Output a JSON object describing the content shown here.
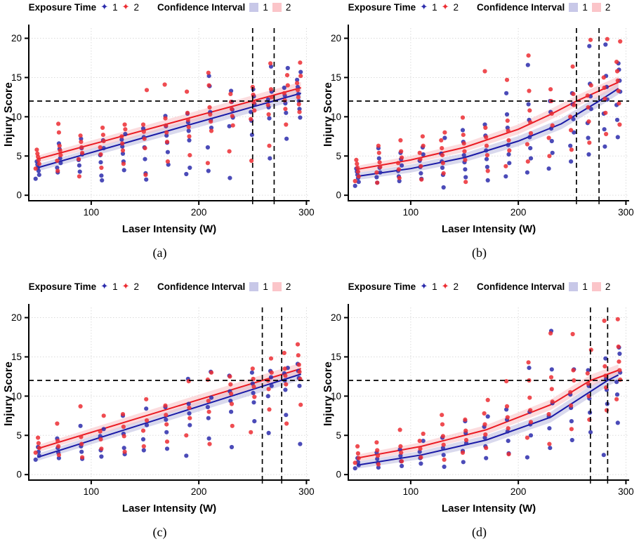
{
  "colors": {
    "blue_line": "#1A1AA6",
    "blue_point": "#2C2CAC",
    "red_line": "#EA1B23",
    "red_point": "#EC2D33",
    "band_blue": "#B9B9DF",
    "band_red": "#F9BFC3",
    "swatch_blue": "#C8C8E8",
    "swatch_red": "#FBC5C9",
    "grid": "#DBDBDB",
    "axis": "#000000",
    "threshold": "#000000"
  },
  "legend": {
    "exposure_label": "Exposure Time",
    "level1": "1",
    "level2": "2",
    "ci_label": "Confidence Interval",
    "ci1": "1",
    "ci2": "2",
    "marker_glyph": "✦"
  },
  "axes": {
    "xlabel": "Laser Intensity (W)",
    "ylabel": "Injury Score",
    "x_ticks": [
      100,
      200,
      300
    ],
    "y_ticks": [
      0,
      5,
      10,
      15,
      20
    ],
    "xlim": [
      42,
      303
    ],
    "ylim": [
      -0.7,
      21.3
    ],
    "threshold_y": 12
  },
  "chart_data": [
    {
      "panel": "a",
      "caption": "(a)",
      "type": "scatter",
      "trend": "linear",
      "hline": 12,
      "vlines": [
        250,
        270
      ],
      "line_blue": [
        [
          50,
          3.5
        ],
        [
          295,
          13.0
        ]
      ],
      "line_red": [
        [
          50,
          4.6
        ],
        [
          295,
          13.7
        ]
      ],
      "points_blue": [
        [
          50,
          2.1,
          2.6,
          3.1,
          3.5,
          3.9,
          4.3
        ],
        [
          70,
          2.9,
          3.5,
          4.1,
          4.7,
          5.9,
          6.6
        ],
        [
          90,
          3.0,
          3.8,
          4.5,
          5.2,
          6.0,
          7.2
        ],
        [
          110,
          1.9,
          2.5,
          4.2,
          5.1,
          6.0,
          7.0
        ],
        [
          130,
          3.2,
          4.3,
          5.3,
          6.2,
          7.1,
          7.8
        ],
        [
          150,
          2.0,
          2.8,
          4.6,
          6.1,
          7.4,
          8.5
        ],
        [
          170,
          3.9,
          5.5,
          6.7,
          7.6,
          8.8,
          10.1
        ],
        [
          190,
          2.7,
          3.5,
          7.0,
          8.2,
          9.3,
          10.4
        ],
        [
          210,
          3.1,
          6.1,
          8.6,
          9.6,
          10.6,
          13.9,
          15.2
        ],
        [
          230,
          2.2,
          8.8,
          9.9,
          10.9,
          11.9,
          13.3
        ],
        [
          250,
          7.7,
          9.5,
          10.6,
          11.6,
          12.6,
          13.5
        ],
        [
          266,
          4.7,
          9.8,
          11.2,
          12.2,
          13.2,
          16.4
        ],
        [
          281,
          7.2,
          10.5,
          11.7,
          12.7,
          13.7,
          16.2
        ],
        [
          293,
          9.9,
          11.0,
          12.0,
          12.9,
          13.8,
          14.7,
          15.7
        ]
      ],
      "points_red": [
        [
          50,
          3.4,
          4.0,
          4.5,
          4.9,
          5.3,
          5.8
        ],
        [
          70,
          3.1,
          4.4,
          5.1,
          5.7,
          6.3,
          8.0,
          9.1
        ],
        [
          90,
          2.4,
          4.6,
          5.4,
          6.1,
          6.8,
          7.6
        ],
        [
          110,
          3.5,
          5.2,
          6.1,
          6.9,
          7.7,
          8.6
        ],
        [
          130,
          4.0,
          5.7,
          6.6,
          7.5,
          8.4,
          9.0
        ],
        [
          150,
          2.6,
          6.0,
          7.2,
          8.1,
          9.0,
          13.4
        ],
        [
          170,
          4.3,
          6.8,
          8.0,
          8.9,
          9.8,
          14.1
        ],
        [
          190,
          5.1,
          7.5,
          8.7,
          9.6,
          10.5,
          13.2
        ],
        [
          210,
          4.1,
          8.2,
          9.4,
          10.3,
          11.2,
          14.0,
          15.6
        ],
        [
          230,
          5.6,
          8.9,
          10.1,
          11.0,
          11.9,
          12.9
        ],
        [
          250,
          4.4,
          9.7,
          10.8,
          11.8,
          12.8,
          13.8
        ],
        [
          266,
          6.3,
          10.3,
          11.5,
          12.5,
          13.5,
          16.8
        ],
        [
          281,
          9.0,
          11.0,
          12.1,
          13.0,
          14.0,
          15.3
        ],
        [
          293,
          10.6,
          11.6,
          12.5,
          13.4,
          14.3,
          15.2,
          16.9
        ]
      ]
    },
    {
      "panel": "b",
      "caption": "(b)",
      "type": "scatter",
      "trend": "curved",
      "hline": 12,
      "vlines": [
        254,
        275
      ],
      "line_blue": [
        [
          50,
          2.4
        ],
        [
          100,
          3.4
        ],
        [
          150,
          4.8
        ],
        [
          200,
          6.9
        ],
        [
          240,
          9.1
        ],
        [
          275,
          12.0
        ],
        [
          293,
          13.6
        ]
      ],
      "line_red": [
        [
          50,
          3.3
        ],
        [
          100,
          4.5
        ],
        [
          150,
          6.1
        ],
        [
          200,
          8.4
        ],
        [
          230,
          10.3
        ],
        [
          254,
          12.0
        ],
        [
          293,
          14.4
        ]
      ],
      "points_blue": [
        [
          50,
          1.2,
          1.7,
          2.2,
          2.6,
          3.0,
          3.4
        ],
        [
          70,
          1.6,
          2.3,
          2.9,
          3.5,
          4.7,
          6.0
        ],
        [
          90,
          1.8,
          2.4,
          3.1,
          3.8,
          4.6,
          5.4
        ],
        [
          110,
          2.1,
          2.8,
          3.6,
          4.4,
          5.2,
          6.1
        ],
        [
          130,
          1.0,
          2.6,
          3.5,
          4.3,
          5.3,
          7.3
        ],
        [
          150,
          2.3,
          3.3,
          4.2,
          5.1,
          6.8,
          8.3
        ],
        [
          170,
          1.9,
          3.6,
          4.6,
          5.7,
          7.6,
          9.0
        ],
        [
          190,
          2.4,
          4.1,
          5.2,
          6.4,
          8.6,
          10.3,
          13.0
        ],
        [
          210,
          2.9,
          4.7,
          6.0,
          7.4,
          9.6,
          11.6,
          16.6
        ],
        [
          230,
          3.4,
          5.4,
          6.9,
          8.5,
          10.6,
          12.0
        ],
        [
          250,
          4.3,
          6.3,
          8.0,
          9.7,
          11.6,
          13.0
        ],
        [
          266,
          5.2,
          7.3,
          9.2,
          11.0,
          12.6,
          14.2,
          19.0
        ],
        [
          281,
          6.2,
          8.4,
          10.4,
          12.2,
          13.8,
          15.2,
          19.2
        ],
        [
          293,
          7.4,
          9.6,
          11.5,
          13.2,
          14.6,
          16.0,
          16.8
        ]
      ],
      "points_red": [
        [
          50,
          1.8,
          2.4,
          3.0,
          3.5,
          4.0,
          4.5
        ],
        [
          70,
          1.6,
          2.9,
          3.6,
          4.2,
          5.4,
          6.3
        ],
        [
          90,
          2.2,
          3.3,
          4.1,
          4.8,
          5.6,
          7.0
        ],
        [
          110,
          2.0,
          3.7,
          4.6,
          5.4,
          6.3,
          7.5
        ],
        [
          130,
          2.8,
          4.1,
          5.1,
          6.0,
          7.0,
          8.0
        ],
        [
          150,
          1.7,
          4.5,
          5.6,
          6.6,
          7.7,
          9.9
        ],
        [
          170,
          3.1,
          5.1,
          6.3,
          7.4,
          8.6,
          15.8
        ],
        [
          190,
          3.7,
          5.7,
          7.0,
          8.2,
          9.5,
          14.7
        ],
        [
          210,
          4.3,
          6.5,
          7.9,
          9.3,
          10.8,
          13.3,
          17.8
        ],
        [
          230,
          5.0,
          7.3,
          8.9,
          10.4,
          12.0,
          13.5
        ],
        [
          250,
          5.8,
          8.3,
          10.0,
          11.5,
          12.9,
          16.4
        ],
        [
          266,
          6.7,
          9.4,
          11.2,
          12.7,
          14.0,
          19.8
        ],
        [
          281,
          7.8,
          10.5,
          12.3,
          13.7,
          15.0,
          19.9
        ],
        [
          293,
          9.0,
          11.7,
          13.3,
          14.6,
          15.8,
          17.0,
          19.6
        ]
      ]
    },
    {
      "panel": "c",
      "caption": "(c)",
      "type": "scatter",
      "trend": "linear",
      "hline": 12,
      "vlines": [
        259,
        277
      ],
      "line_blue": [
        [
          50,
          2.2
        ],
        [
          295,
          12.8
        ]
      ],
      "line_red": [
        [
          50,
          3.3
        ],
        [
          295,
          13.5
        ]
      ],
      "points_blue": [
        [
          50,
          1.9,
          2.4,
          2.9,
          3.5
        ],
        [
          70,
          2.1,
          2.8,
          3.4,
          4.6
        ],
        [
          90,
          2.0,
          2.9,
          3.6,
          6.2
        ],
        [
          110,
          2.3,
          3.1,
          4.9,
          5.8
        ],
        [
          130,
          2.6,
          3.4,
          5.2,
          7.5
        ],
        [
          150,
          3.1,
          4.5,
          6.3,
          8.4
        ],
        [
          170,
          3.3,
          5.4,
          7.0,
          8.6
        ],
        [
          190,
          2.4,
          6.3,
          7.8,
          9.0,
          12.2
        ],
        [
          210,
          4.6,
          7.2,
          8.6,
          9.8,
          13.1
        ],
        [
          230,
          3.5,
          8.0,
          9.4,
          10.6,
          12.6
        ],
        [
          250,
          6.8,
          9.2,
          10.4,
          11.6,
          13.0
        ],
        [
          266,
          5.3,
          10.0,
          11.3,
          12.4,
          13.2
        ],
        [
          281,
          7.6,
          10.8,
          12.0,
          12.9,
          13.6
        ],
        [
          293,
          3.9,
          11.3,
          12.3,
          13.2,
          14.1
        ]
      ],
      "points_red": [
        [
          50,
          2.8,
          3.4,
          4.0,
          4.7
        ],
        [
          70,
          2.5,
          3.6,
          4.3,
          6.5
        ],
        [
          90,
          2.2,
          3.9,
          4.8,
          8.7
        ],
        [
          110,
          3.3,
          4.5,
          5.5,
          7.5
        ],
        [
          130,
          2.9,
          4.9,
          6.1,
          7.7
        ],
        [
          150,
          3.6,
          5.6,
          6.9,
          9.6
        ],
        [
          170,
          4.2,
          6.4,
          7.6,
          8.8
        ],
        [
          190,
          5.0,
          7.2,
          8.5,
          11.9
        ],
        [
          210,
          3.9,
          8.0,
          9.4,
          12.1,
          13.0
        ],
        [
          230,
          6.2,
          9.0,
          10.3,
          11.5,
          12.5
        ],
        [
          250,
          5.4,
          9.9,
          11.2,
          12.2,
          13.5
        ],
        [
          266,
          8.3,
          10.9,
          12.0,
          13.0,
          14.8
        ],
        [
          281,
          6.5,
          11.5,
          12.6,
          13.5,
          15.5
        ],
        [
          293,
          8.9,
          12.2,
          13.1,
          14.0,
          15.2,
          16.6
        ]
      ]
    },
    {
      "panel": "d",
      "caption": "(d)",
      "type": "scatter",
      "trend": "curved",
      "hline": 12,
      "vlines": [
        267,
        283
      ],
      "line_blue": [
        [
          50,
          1.2
        ],
        [
          110,
          2.5
        ],
        [
          170,
          4.4
        ],
        [
          230,
          7.3
        ],
        [
          283,
          12.0
        ],
        [
          293,
          12.7
        ]
      ],
      "line_red": [
        [
          50,
          2.1
        ],
        [
          110,
          3.6
        ],
        [
          170,
          5.7
        ],
        [
          230,
          8.9
        ],
        [
          267,
          12.0
        ],
        [
          293,
          13.3
        ]
      ],
      "points_blue": [
        [
          50,
          0.8,
          1.2,
          1.6,
          2.1
        ],
        [
          70,
          0.9,
          1.5,
          2.0,
          2.8
        ],
        [
          90,
          1.1,
          1.7,
          2.4,
          3.2
        ],
        [
          110,
          1.4,
          2.1,
          2.9,
          4.3
        ],
        [
          130,
          1.0,
          2.5,
          3.4,
          4.7
        ],
        [
          150,
          1.6,
          3.0,
          4.0,
          5.3,
          6.8
        ],
        [
          170,
          2.1,
          3.6,
          4.7,
          6.1,
          7.4
        ],
        [
          190,
          2.7,
          4.3,
          5.5,
          7.0,
          8.3
        ],
        [
          210,
          2.2,
          5.0,
          6.4,
          8.0,
          13.6
        ],
        [
          230,
          3.4,
          5.9,
          7.4,
          9.1,
          13.4,
          18.3
        ],
        [
          250,
          4.4,
          6.8,
          8.5,
          10.2,
          13.4
        ],
        [
          266,
          5.4,
          7.9,
          9.7,
          11.3,
          13.3
        ],
        [
          281,
          2.5,
          9.0,
          10.8,
          12.2,
          14.8
        ],
        [
          293,
          6.6,
          10.2,
          11.8,
          13.0,
          15.4,
          16.2
        ]
      ],
      "points_red": [
        [
          50,
          1.5,
          2.1,
          2.7,
          3.6
        ],
        [
          70,
          1.3,
          2.4,
          3.1,
          4.1
        ],
        [
          90,
          1.7,
          2.8,
          3.6,
          5.7
        ],
        [
          110,
          2.2,
          3.3,
          4.3,
          5.2
        ],
        [
          130,
          1.9,
          3.8,
          4.9,
          6.4,
          7.6
        ],
        [
          150,
          2.8,
          4.4,
          5.6,
          7.0
        ],
        [
          170,
          3.4,
          5.1,
          6.4,
          7.8,
          9.5
        ],
        [
          190,
          2.6,
          5.9,
          7.3,
          8.7,
          11.9
        ],
        [
          210,
          4.7,
          6.7,
          8.2,
          9.8,
          12.0,
          14.3
        ],
        [
          230,
          3.9,
          7.7,
          9.3,
          10.9,
          12.4,
          18.0
        ],
        [
          250,
          5.8,
          8.8,
          10.5,
          12.0,
          13.3,
          17.9
        ],
        [
          266,
          7.0,
          10.0,
          11.6,
          12.9,
          15.9
        ],
        [
          281,
          8.2,
          11.1,
          12.6,
          13.8,
          19.6
        ],
        [
          293,
          9.6,
          12.1,
          13.3,
          14.4,
          16.3,
          19.8
        ]
      ]
    }
  ]
}
